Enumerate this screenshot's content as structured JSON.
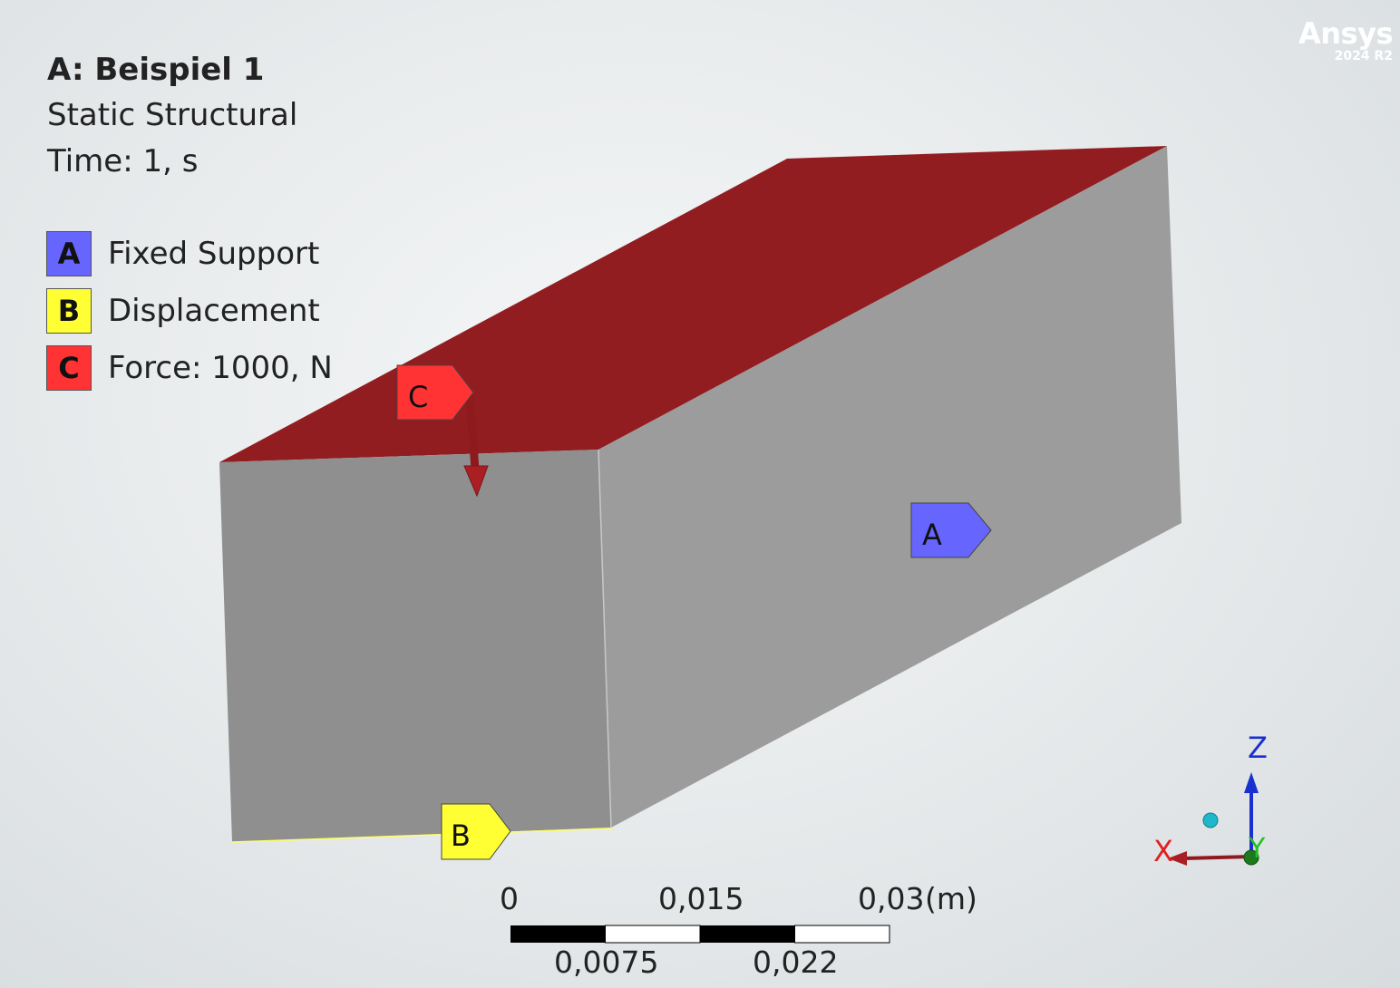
{
  "header": {
    "title": "A: Beispiel 1",
    "analysis_type": "Static Structural",
    "time": "Time: 1, s"
  },
  "legend": [
    {
      "letter": "A",
      "label": "Fixed Support",
      "color": "#6666ff"
    },
    {
      "letter": "B",
      "label": "Displacement",
      "color": "#ffff33"
    },
    {
      "letter": "C",
      "label": "Force: 1000, N",
      "color": "#ff3333"
    }
  ],
  "brand": {
    "name": "Ansys",
    "version": "2024 R2"
  },
  "model": {
    "top_face_color": "#921d21",
    "side_face_color": "#9c9c9c",
    "front_face_color": "#8f8f8f"
  },
  "tags": {
    "a": "A",
    "b": "B",
    "c": "C"
  },
  "scale_bar": {
    "top_labels": [
      "0",
      "0,015",
      "0,03"
    ],
    "unit": "(m)",
    "bottom_labels": [
      "0,0075",
      "0,022"
    ]
  },
  "triad": {
    "x": "X",
    "y": "Y",
    "z": "Z"
  }
}
